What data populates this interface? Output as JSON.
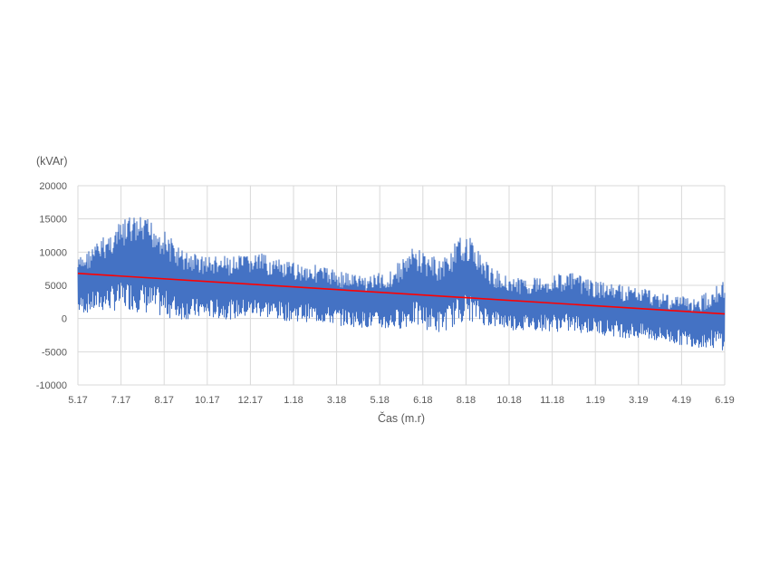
{
  "chart_data": {
    "type": "line",
    "title": "",
    "ylabel": "(kVAr)",
    "xlabel": "Čas (m.r)",
    "ylim": [
      -10000,
      20000
    ],
    "y_ticks": [
      -10000,
      -5000,
      0,
      5000,
      10000,
      15000,
      20000
    ],
    "x_ticks": [
      "5.17",
      "7.17",
      "8.17",
      "10.17",
      "12.17",
      "1.18",
      "3.18",
      "5.18",
      "6.18",
      "8.18",
      "10.18",
      "11.18",
      "1.19",
      "3.19",
      "4.19",
      "6.19"
    ],
    "grid": true,
    "legend": "none",
    "series": [
      {
        "color": "#4472c4",
        "style": "dense band (high-frequency oscillation)",
        "x": [
          "5.17",
          "6.17",
          "7.17",
          "8.17",
          "9.17",
          "10.17",
          "11.17",
          "12.17",
          "1.18",
          "2.18",
          "3.18",
          "4.18",
          "5.18",
          "6.18",
          "7.18",
          "8.18",
          "9.18",
          "10.18",
          "11.18",
          "12.18",
          "1.19",
          "2.19",
          "3.19",
          "4.19",
          "5.19",
          "6.19"
        ],
        "upper": [
          9500,
          13000,
          16300,
          15600,
          11000,
          10000,
          9800,
          10400,
          9000,
          8800,
          7800,
          7000,
          7500,
          11500,
          9500,
          13800,
          8000,
          6500,
          6800,
          7500,
          6000,
          5500,
          5000,
          4000,
          3500,
          6800
        ],
        "lower": [
          500,
          800,
          1000,
          0,
          -400,
          -200,
          -300,
          0,
          -500,
          -700,
          -1200,
          -1500,
          -2000,
          -1400,
          -2500,
          -500,
          -1500,
          -2000,
          -2000,
          -2300,
          -2500,
          -3000,
          -3500,
          -4000,
          -4500,
          -5000
        ]
      },
      {
        "color": "#ff0000",
        "style": "linear trend",
        "x": [
          "5.17",
          "6.19"
        ],
        "values": [
          6800,
          700
        ]
      }
    ]
  }
}
